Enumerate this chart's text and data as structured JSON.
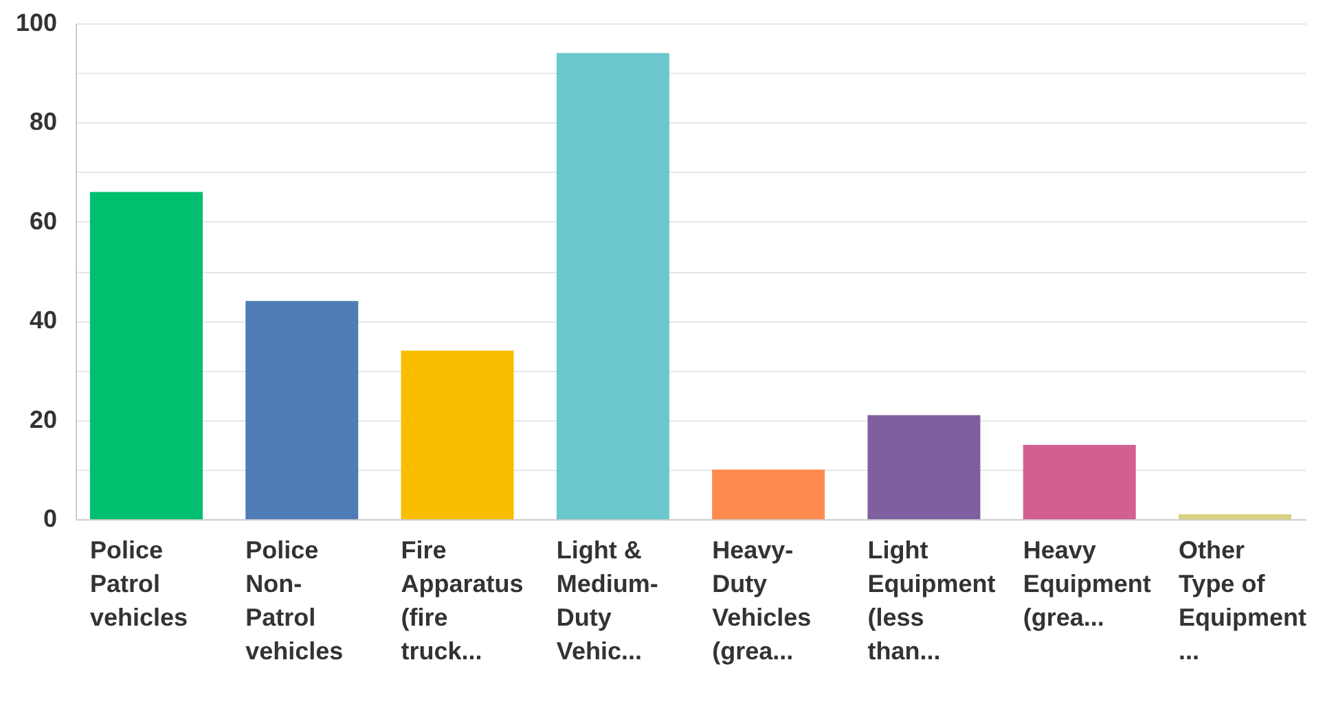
{
  "chart_data": {
    "type": "bar",
    "categories": [
      "Police Patrol vehicles",
      "Police Non-Patrol vehicles",
      "Fire Apparatus (fire truck...",
      "Light & Medium-Duty Vehic...",
      "Heavy-Duty Vehicles (grea...",
      "Light Equipment (less than...",
      "Heavy Equipment (grea...",
      "Other Type of Equipment..."
    ],
    "values": [
      66,
      44,
      34,
      94,
      10,
      21,
      15,
      1
    ],
    "colors": [
      "#00bf6f",
      "#507cb6",
      "#f9be00",
      "#6bc8cd",
      "#ff8b4f",
      "#7f5fa0",
      "#d25f90",
      "#dad180"
    ],
    "ylim": [
      0,
      100
    ],
    "yticks": [
      0,
      {
        "value": 10,
        "label": null
      },
      20,
      {
        "value": 30,
        "label": null
      },
      40,
      {
        "value": 50,
        "label": null
      },
      60,
      {
        "value": 70,
        "label": null
      },
      80,
      {
        "value": 90,
        "label": null
      },
      100
    ],
    "grid": true
  }
}
